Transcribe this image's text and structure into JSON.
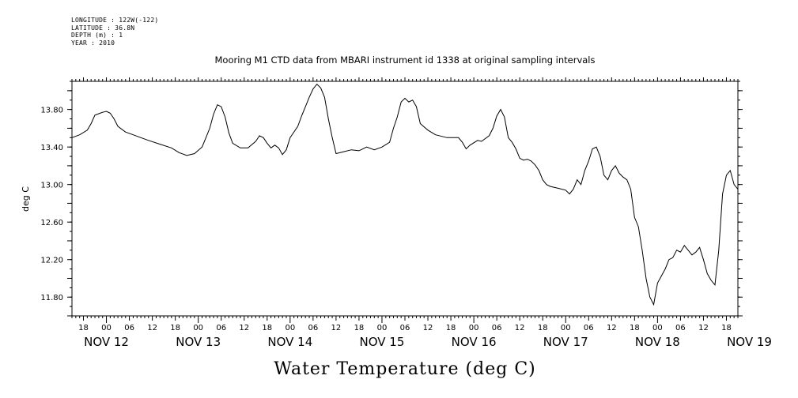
{
  "header": {
    "longitude": "LONGITUDE : 122W(-122)",
    "latitude": "LATITUDE : 36.8N",
    "depth": "DEPTH (m) : 1",
    "year": "YEAR : 2010"
  },
  "chart_data": {
    "type": "line",
    "title": "Mooring M1 CTD data from MBARI instrument id 1338 at original sampling intervals",
    "xlabel": "Water Temperature (deg C)",
    "ylabel": "deg C",
    "ylim": [
      11.6,
      14.1
    ],
    "y_ticks": [
      "13.80",
      "13.40",
      "13.00",
      "12.60",
      "12.20",
      "11.80"
    ],
    "x_range_hours": [
      -9,
      165
    ],
    "x_hour_ticks": [
      "18",
      "00",
      "06",
      "12",
      "18",
      "00",
      "06",
      "12",
      "18",
      "00",
      "06",
      "12",
      "18",
      "00",
      "06",
      "12",
      "18",
      "00",
      "06",
      "12",
      "18",
      "00",
      "06",
      "12",
      "18",
      "00",
      "06",
      "12",
      "18",
      "00",
      "06",
      "12"
    ],
    "x_date_labels": [
      "NOV 12",
      "NOV 13",
      "NOV 14",
      "NOV 15",
      "NOV 16",
      "NOV 17",
      "NOV 18",
      "NOV 19"
    ],
    "grid": false,
    "series": [
      {
        "values": [
          [
            -9,
            13.5
          ],
          [
            -7,
            13.53
          ],
          [
            -5,
            13.58
          ],
          [
            -4,
            13.65
          ],
          [
            -3,
            13.74
          ],
          [
            -1,
            13.77
          ],
          [
            0,
            13.78
          ],
          [
            1,
            13.76
          ],
          [
            2,
            13.7
          ],
          [
            3,
            13.62
          ],
          [
            5,
            13.56
          ],
          [
            7,
            13.53
          ],
          [
            9,
            13.5
          ],
          [
            11,
            13.47
          ],
          [
            14,
            13.43
          ],
          [
            17,
            13.39
          ],
          [
            19,
            13.34
          ],
          [
            21,
            13.31
          ],
          [
            23,
            13.33
          ],
          [
            25,
            13.4
          ],
          [
            26,
            13.5
          ],
          [
            27,
            13.6
          ],
          [
            28,
            13.75
          ],
          [
            29,
            13.85
          ],
          [
            30,
            13.83
          ],
          [
            31,
            13.72
          ],
          [
            32,
            13.55
          ],
          [
            33,
            13.44
          ],
          [
            35,
            13.39
          ],
          [
            37,
            13.39
          ],
          [
            39,
            13.46
          ],
          [
            40,
            13.52
          ],
          [
            41,
            13.5
          ],
          [
            42,
            13.44
          ],
          [
            43,
            13.39
          ],
          [
            44,
            13.42
          ],
          [
            45,
            13.39
          ],
          [
            46,
            13.32
          ],
          [
            47,
            13.37
          ],
          [
            48,
            13.5
          ],
          [
            50,
            13.62
          ],
          [
            51,
            13.73
          ],
          [
            52,
            13.83
          ],
          [
            53,
            13.93
          ],
          [
            54,
            14.02
          ],
          [
            55,
            14.07
          ],
          [
            56,
            14.03
          ],
          [
            57,
            13.93
          ],
          [
            58,
            13.7
          ],
          [
            59,
            13.5
          ],
          [
            60,
            13.33
          ],
          [
            62,
            13.35
          ],
          [
            64,
            13.37
          ],
          [
            66,
            13.36
          ],
          [
            68,
            13.4
          ],
          [
            70,
            13.37
          ],
          [
            72,
            13.4
          ],
          [
            74,
            13.45
          ],
          [
            75,
            13.6
          ],
          [
            76,
            13.72
          ],
          [
            77,
            13.88
          ],
          [
            78,
            13.92
          ],
          [
            79,
            13.88
          ],
          [
            80,
            13.9
          ],
          [
            81,
            13.83
          ],
          [
            82,
            13.65
          ],
          [
            84,
            13.58
          ],
          [
            86,
            13.53
          ],
          [
            89,
            13.5
          ],
          [
            92,
            13.5
          ],
          [
            93,
            13.45
          ],
          [
            94,
            13.38
          ],
          [
            95,
            13.42
          ],
          [
            97,
            13.47
          ],
          [
            98,
            13.46
          ],
          [
            100,
            13.52
          ],
          [
            101,
            13.6
          ],
          [
            102,
            13.73
          ],
          [
            103,
            13.8
          ],
          [
            104,
            13.72
          ],
          [
            105,
            13.5
          ],
          [
            106,
            13.45
          ],
          [
            107,
            13.38
          ],
          [
            108,
            13.28
          ],
          [
            109,
            13.26
          ],
          [
            110,
            13.27
          ],
          [
            111,
            13.25
          ],
          [
            112,
            13.21
          ],
          [
            113,
            13.15
          ],
          [
            114,
            13.05
          ],
          [
            115,
            13.0
          ],
          [
            116,
            12.98
          ],
          [
            118,
            12.96
          ],
          [
            120,
            12.94
          ],
          [
            121,
            12.9
          ],
          [
            122,
            12.95
          ],
          [
            123,
            13.05
          ],
          [
            124,
            13.0
          ],
          [
            125,
            13.15
          ],
          [
            126,
            13.25
          ],
          [
            127,
            13.38
          ],
          [
            128,
            13.4
          ],
          [
            129,
            13.3
          ],
          [
            130,
            13.1
          ],
          [
            131,
            13.05
          ],
          [
            132,
            13.15
          ],
          [
            133,
            13.2
          ],
          [
            134,
            13.12
          ],
          [
            135,
            13.08
          ],
          [
            136,
            13.05
          ],
          [
            137,
            12.95
          ],
          [
            138,
            12.65
          ],
          [
            139,
            12.55
          ],
          [
            140,
            12.3
          ],
          [
            141,
            12.0
          ],
          [
            142,
            11.8
          ],
          [
            143,
            11.72
          ],
          [
            144,
            11.95
          ],
          [
            146,
            12.1
          ],
          [
            147,
            12.2
          ],
          [
            148,
            12.22
          ],
          [
            149,
            12.3
          ],
          [
            150,
            12.28
          ],
          [
            151,
            12.35
          ],
          [
            152,
            12.3
          ],
          [
            153,
            12.25
          ],
          [
            154,
            12.28
          ],
          [
            155,
            12.33
          ],
          [
            156,
            12.2
          ],
          [
            157,
            12.05
          ],
          [
            158,
            11.98
          ],
          [
            159,
            11.93
          ],
          [
            160,
            12.3
          ],
          [
            161,
            12.9
          ],
          [
            162,
            13.1
          ],
          [
            163,
            13.15
          ],
          [
            164,
            13.0
          ],
          [
            165,
            12.95
          ]
        ]
      }
    ]
  }
}
